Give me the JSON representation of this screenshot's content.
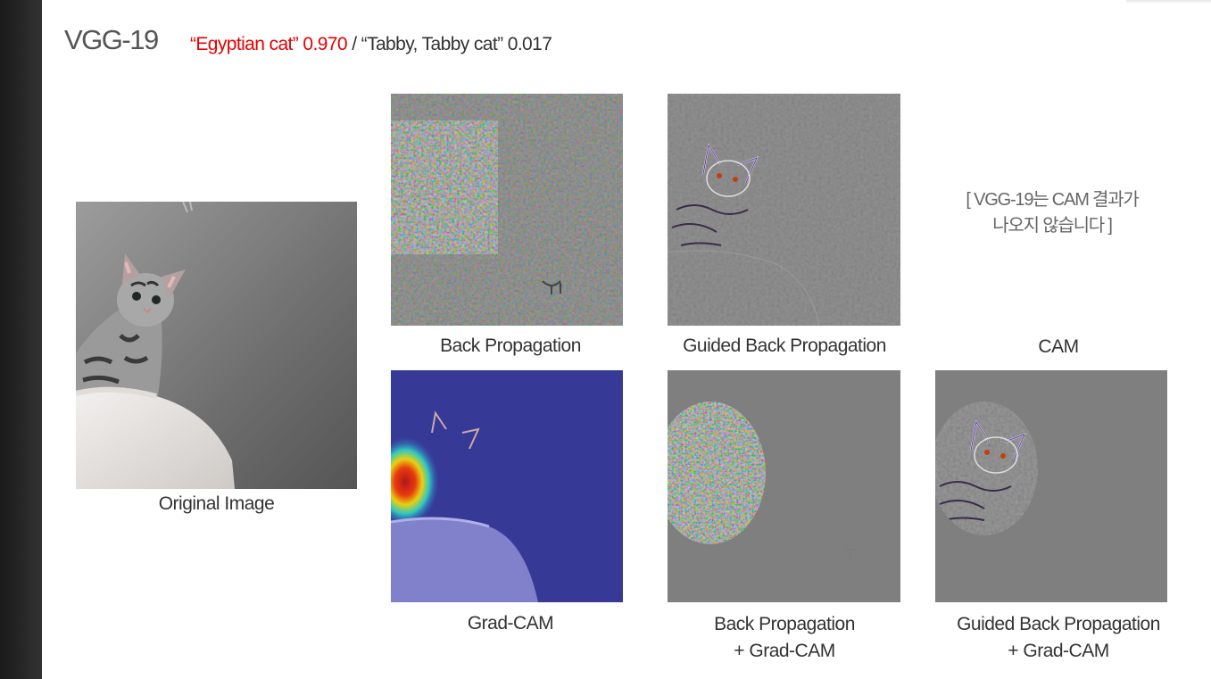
{
  "slide": {
    "model_title": "VGG-19",
    "prediction_top": "“Egyptian cat” 0.970",
    "prediction_separator": " / ",
    "prediction_second": "“Tabby, Tabby cat” 0.017",
    "colors": {
      "top_prediction": "#e60000",
      "sidebar": "#262626"
    }
  },
  "panels": {
    "original_caption": "Original Image",
    "backprop_caption": "Back Propagation",
    "guided_backprop_caption": "Guided Back Propagation",
    "cam_caption": "CAM",
    "cam_note_line1": "[ VGG-19는 CAM 결과가",
    "cam_note_line2": "나오지 않습니다 ]",
    "gradcam_caption": "Grad-CAM",
    "backprop_gradcam_caption_line1": "Back Propagation",
    "backprop_gradcam_caption_line2": "+ Grad-CAM",
    "guided_gradcam_caption_line1": "Guided Back Propagation",
    "guided_gradcam_caption_line2": "+ Grad-CAM"
  }
}
